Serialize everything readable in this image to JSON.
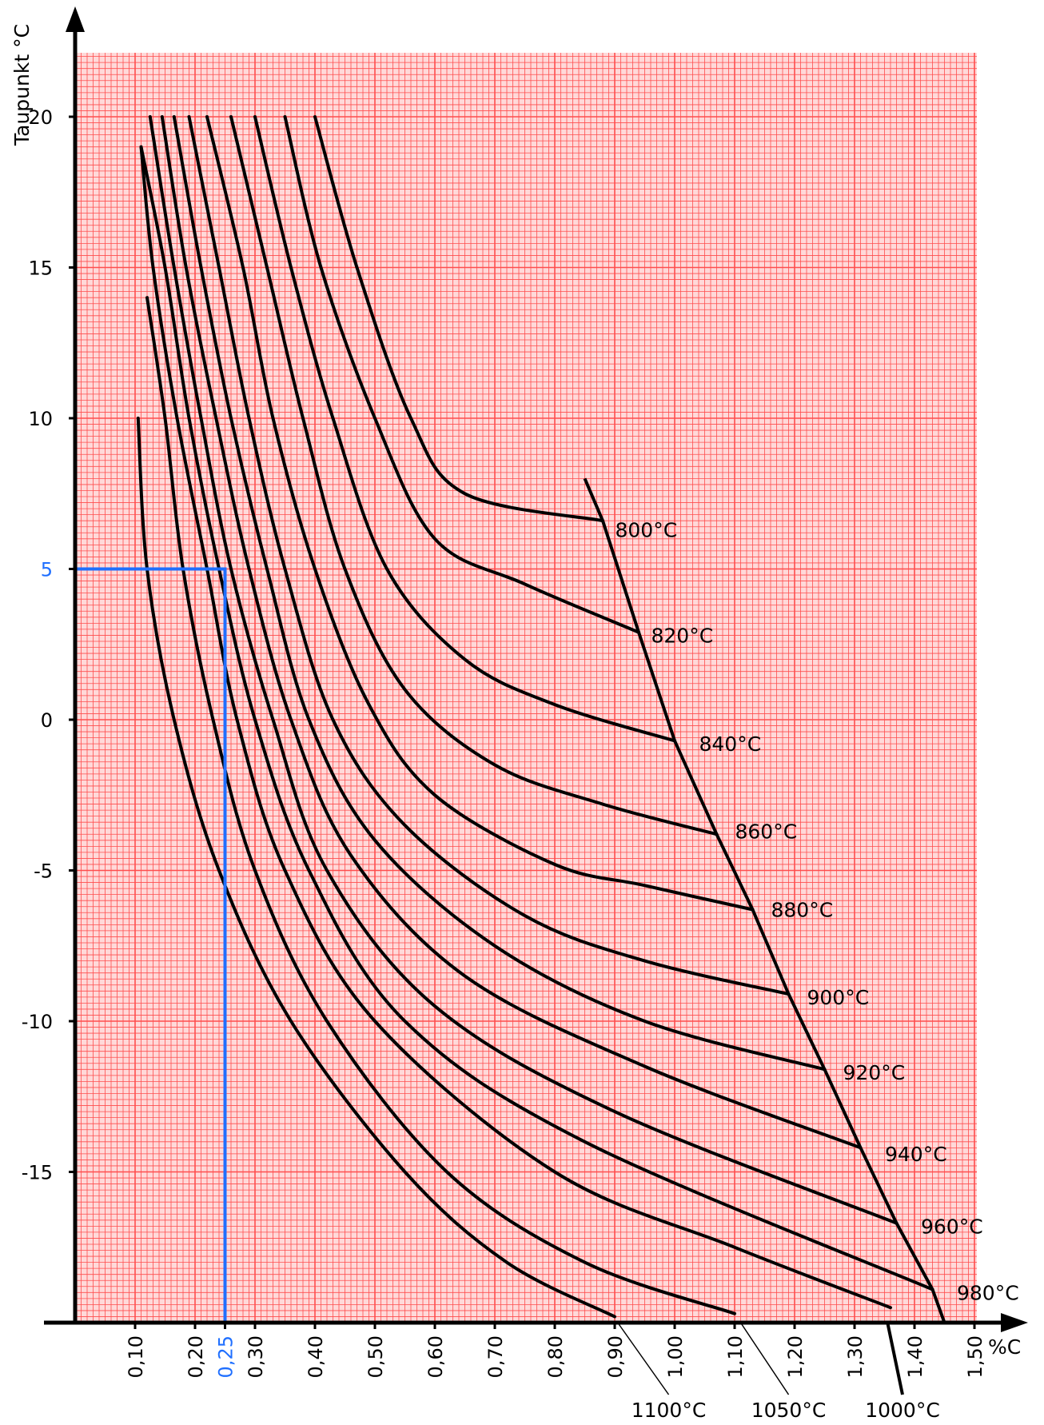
{
  "chart_data": {
    "type": "line",
    "ylabel": "Taupunkt °C",
    "xlabel": "%C",
    "xlim": [
      0,
      1.5
    ],
    "ylim": [
      -20,
      22
    ],
    "grid": true,
    "grid_color": "#ff4d4d",
    "grid_bg": "#ffd9d9",
    "curve_color": "#000000",
    "highlight_color": "#1f6fff",
    "x_ticks": [
      {
        "v": 0.1,
        "label": "0,10"
      },
      {
        "v": 0.2,
        "label": "0,20"
      },
      {
        "v": 0.25,
        "label": "0,25"
      },
      {
        "v": 0.3,
        "label": "0,30"
      },
      {
        "v": 0.4,
        "label": "0,40"
      },
      {
        "v": 0.5,
        "label": "0,50"
      },
      {
        "v": 0.6,
        "label": "0,60"
      },
      {
        "v": 0.7,
        "label": "0,70"
      },
      {
        "v": 0.8,
        "label": "0,80"
      },
      {
        "v": 0.9,
        "label": "0,90"
      },
      {
        "v": 1.0,
        "label": "1,00"
      },
      {
        "v": 1.1,
        "label": "1,10"
      },
      {
        "v": 1.2,
        "label": "1,20"
      },
      {
        "v": 1.3,
        "label": "1,30"
      },
      {
        "v": 1.4,
        "label": "1,40"
      },
      {
        "v": 1.5,
        "label": "1,50"
      }
    ],
    "y_ticks": [
      {
        "v": 20,
        "label": "20"
      },
      {
        "v": 15,
        "label": "15"
      },
      {
        "v": 10,
        "label": "10"
      },
      {
        "v": 5,
        "label": "5"
      },
      {
        "v": 0,
        "label": "0"
      },
      {
        "v": -5,
        "label": "-5"
      },
      {
        "v": -10,
        "label": "-10"
      },
      {
        "v": -15,
        "label": "-15"
      }
    ],
    "highlight": {
      "x": 0.25,
      "y": 5,
      "x_label": "0,25",
      "y_label": "5"
    },
    "series": [
      {
        "name": "800°C",
        "points": [
          [
            0.4,
            20
          ],
          [
            0.47,
            15
          ],
          [
            0.56,
            10
          ],
          [
            0.65,
            7.5
          ],
          [
            0.88,
            6.6
          ]
        ]
      },
      {
        "name": "820°C",
        "points": [
          [
            0.35,
            20
          ],
          [
            0.41,
            15
          ],
          [
            0.5,
            10
          ],
          [
            0.6,
            6
          ],
          [
            0.75,
            4.5
          ],
          [
            0.94,
            2.9
          ]
        ]
      },
      {
        "name": "840°C",
        "points": [
          [
            0.3,
            20
          ],
          [
            0.36,
            15
          ],
          [
            0.43,
            10
          ],
          [
            0.52,
            5
          ],
          [
            0.65,
            2
          ],
          [
            0.8,
            0.5
          ],
          [
            1.0,
            -0.7
          ]
        ]
      },
      {
        "name": "860°C",
        "points": [
          [
            0.26,
            20
          ],
          [
            0.32,
            15
          ],
          [
            0.38,
            10
          ],
          [
            0.45,
            5
          ],
          [
            0.55,
            1
          ],
          [
            0.7,
            -1.5
          ],
          [
            0.88,
            -2.8
          ],
          [
            1.07,
            -3.8
          ]
        ]
      },
      {
        "name": "880°C",
        "points": [
          [
            0.22,
            20
          ],
          [
            0.28,
            15
          ],
          [
            0.33,
            10
          ],
          [
            0.4,
            5
          ],
          [
            0.49,
            0.5
          ],
          [
            0.6,
            -2.5
          ],
          [
            0.8,
            -4.8
          ],
          [
            0.95,
            -5.5
          ],
          [
            1.13,
            -6.3
          ]
        ]
      },
      {
        "name": "900°C",
        "points": [
          [
            0.19,
            20
          ],
          [
            0.24,
            15
          ],
          [
            0.29,
            10
          ],
          [
            0.35,
            5
          ],
          [
            0.43,
            0
          ],
          [
            0.55,
            -3.5
          ],
          [
            0.75,
            -6.5
          ],
          [
            0.95,
            -8
          ],
          [
            1.19,
            -9.1
          ]
        ]
      },
      {
        "name": "920°C",
        "points": [
          [
            0.165,
            20
          ],
          [
            0.21,
            15
          ],
          [
            0.26,
            10
          ],
          [
            0.32,
            5
          ],
          [
            0.39,
            0
          ],
          [
            0.5,
            -4
          ],
          [
            0.7,
            -7.5
          ],
          [
            0.95,
            -10
          ],
          [
            1.25,
            -11.6
          ]
        ]
      },
      {
        "name": "940°C",
        "points": [
          [
            0.145,
            20
          ],
          [
            0.185,
            15
          ],
          [
            0.235,
            10
          ],
          [
            0.29,
            5
          ],
          [
            0.36,
            0
          ],
          [
            0.46,
            -4.5
          ],
          [
            0.65,
            -8.5
          ],
          [
            0.95,
            -11.5
          ],
          [
            1.31,
            -14.2
          ]
        ]
      },
      {
        "name": "960°C",
        "points": [
          [
            0.125,
            20
          ],
          [
            0.165,
            15
          ],
          [
            0.21,
            10
          ],
          [
            0.26,
            5
          ],
          [
            0.33,
            0
          ],
          [
            0.42,
            -5
          ],
          [
            0.6,
            -9.5
          ],
          [
            0.9,
            -13
          ],
          [
            1.37,
            -16.7
          ]
        ]
      },
      {
        "name": "980°C",
        "points": [
          [
            0.11,
            19
          ],
          [
            0.15,
            15
          ],
          [
            0.19,
            10
          ],
          [
            0.24,
            5
          ],
          [
            0.3,
            0
          ],
          [
            0.39,
            -5
          ],
          [
            0.55,
            -10
          ],
          [
            0.85,
            -14
          ],
          [
            1.43,
            -18.9
          ]
        ]
      },
      {
        "name": "1000°C",
        "points": [
          [
            0.11,
            19
          ],
          [
            0.13,
            15
          ],
          [
            0.17,
            10
          ],
          [
            0.22,
            5
          ],
          [
            0.27,
            0
          ],
          [
            0.35,
            -5
          ],
          [
            0.5,
            -10
          ],
          [
            0.8,
            -15
          ],
          [
            1.1,
            -17.5
          ],
          [
            1.36,
            -19.5
          ]
        ]
      },
      {
        "name": "1050°C",
        "points": [
          [
            0.12,
            14
          ],
          [
            0.15,
            10
          ],
          [
            0.18,
            5
          ],
          [
            0.23,
            0
          ],
          [
            0.3,
            -5
          ],
          [
            0.42,
            -10
          ],
          [
            0.62,
            -15
          ],
          [
            0.85,
            -18
          ],
          [
            1.1,
            -19.7
          ]
        ]
      },
      {
        "name": "1100°C",
        "points": [
          [
            0.105,
            10
          ],
          [
            0.12,
            5
          ],
          [
            0.165,
            0
          ],
          [
            0.24,
            -5
          ],
          [
            0.36,
            -10
          ],
          [
            0.55,
            -15
          ],
          [
            0.72,
            -18
          ],
          [
            0.9,
            -19.8
          ]
        ]
      }
    ],
    "envelope": [
      [
        0.85,
        8
      ],
      [
        0.88,
        6.6
      ],
      [
        0.94,
        2.9
      ],
      [
        1.0,
        -0.7
      ],
      [
        1.07,
        -3.8
      ],
      [
        1.13,
        -6.3
      ],
      [
        1.19,
        -9.1
      ],
      [
        1.25,
        -11.6
      ],
      [
        1.31,
        -14.2
      ],
      [
        1.37,
        -16.7
      ],
      [
        1.43,
        -18.9
      ],
      [
        1.45,
        -20
      ]
    ],
    "labels": [
      {
        "text": "800°C",
        "x": 0.89,
        "y": 6.3,
        "pos": "right"
      },
      {
        "text": "820°C",
        "x": 0.95,
        "y": 2.8,
        "pos": "right"
      },
      {
        "text": "840°C",
        "x": 1.03,
        "y": -0.8,
        "pos": "right"
      },
      {
        "text": "860°C",
        "x": 1.09,
        "y": -3.7,
        "pos": "right"
      },
      {
        "text": "880°C",
        "x": 1.15,
        "y": -6.3,
        "pos": "right"
      },
      {
        "text": "900°C",
        "x": 1.21,
        "y": -9.2,
        "pos": "right"
      },
      {
        "text": "920°C",
        "x": 1.27,
        "y": -11.7,
        "pos": "right"
      },
      {
        "text": "940°C",
        "x": 1.34,
        "y": -14.4,
        "pos": "right"
      },
      {
        "text": "960°C",
        "x": 1.4,
        "y": -16.8,
        "pos": "right"
      },
      {
        "text": "980°C",
        "x": 1.46,
        "y": -19.0,
        "pos": "right"
      }
    ],
    "bottom_labels": [
      {
        "text": "1100°C",
        "x_start": 0.905,
        "x_end": 0.99
      },
      {
        "text": "1050°C",
        "x_start": 1.11,
        "x_end": 1.19
      },
      {
        "text": "1000°C",
        "x_start": 1.355,
        "x_end": 1.38
      }
    ]
  }
}
